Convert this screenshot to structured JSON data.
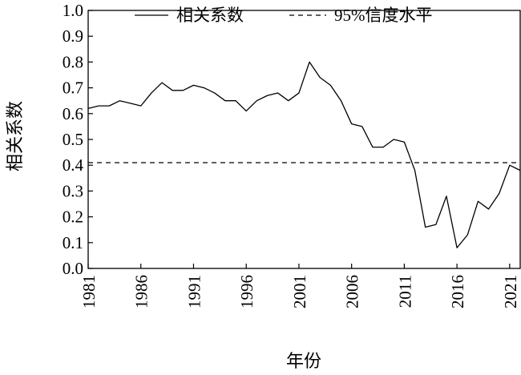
{
  "chart_data": {
    "type": "line",
    "ylabel": "相关系数",
    "xlabel": "年份",
    "xlim": [
      1981,
      2022
    ],
    "ylim": [
      0,
      1
    ],
    "x_ticks": [
      1981,
      1986,
      1991,
      1996,
      2001,
      2006,
      2011,
      2016,
      2021
    ],
    "y_ticks": [
      "0.0",
      "0.1",
      "0.2",
      "0.3",
      "0.4",
      "0.5",
      "0.6",
      "0.7",
      "0.8",
      "0.9",
      "1.0"
    ],
    "grid": false,
    "legend_position": "top",
    "series": [
      {
        "name": "相关系数",
        "style": "solid",
        "color": "#000000",
        "x": [
          1981,
          1982,
          1983,
          1984,
          1985,
          1986,
          1987,
          1988,
          1989,
          1990,
          1991,
          1992,
          1993,
          1994,
          1995,
          1996,
          1997,
          1998,
          1999,
          2000,
          2001,
          2002,
          2003,
          2004,
          2005,
          2006,
          2007,
          2008,
          2009,
          2010,
          2011,
          2012,
          2013,
          2014,
          2015,
          2016,
          2017,
          2018,
          2019,
          2020,
          2021,
          2022
        ],
        "y": [
          0.62,
          0.63,
          0.63,
          0.65,
          0.64,
          0.63,
          0.68,
          0.72,
          0.69,
          0.69,
          0.71,
          0.7,
          0.68,
          0.65,
          0.65,
          0.61,
          0.65,
          0.67,
          0.68,
          0.65,
          0.68,
          0.8,
          0.74,
          0.71,
          0.65,
          0.56,
          0.55,
          0.47,
          0.47,
          0.5,
          0.49,
          0.38,
          0.16,
          0.17,
          0.28,
          0.08,
          0.13,
          0.26,
          0.23,
          0.29,
          0.4,
          0.38
        ]
      },
      {
        "name": "95%信度水平",
        "style": "dashed",
        "color": "#000000",
        "x": [
          1981,
          2022
        ],
        "y": [
          0.41,
          0.41
        ]
      }
    ]
  },
  "legend": {
    "solid_label": "相关系数",
    "dashed_prefix": "95%",
    "dashed_suffix": "信度水平"
  }
}
